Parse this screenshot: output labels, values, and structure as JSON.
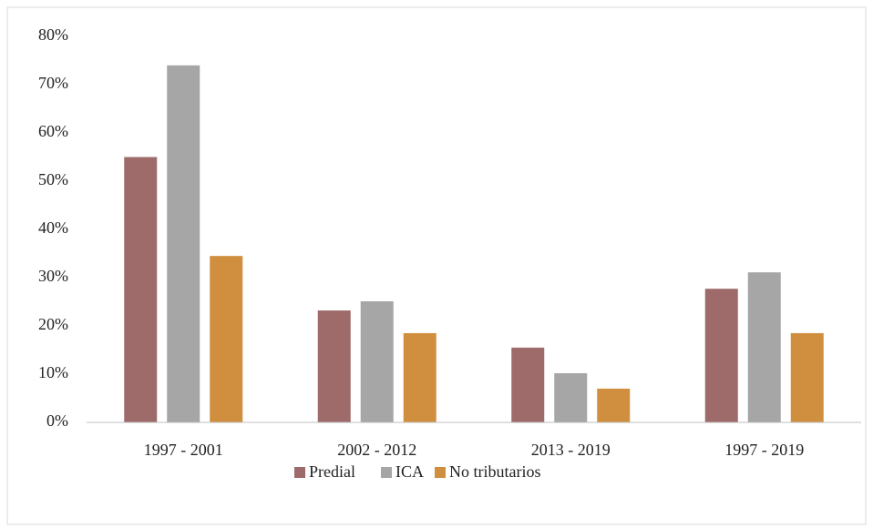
{
  "chart_data": {
    "type": "bar",
    "categories": [
      "1997 - 2001",
      "2002 - 2012",
      "2013 - 2019",
      "1997 - 2019"
    ],
    "series": [
      {
        "name": "Predial",
        "color": "#9e6a6a",
        "values": [
          55,
          23.2,
          15.5,
          27.7
        ]
      },
      {
        "name": "ICA",
        "color": "#a6a6a6",
        "values": [
          74,
          25.1,
          10.2,
          31.1
        ]
      },
      {
        "name": "No tributarios",
        "color": "#d08f3f",
        "values": [
          34.5,
          18.5,
          7,
          18.5
        ]
      }
    ],
    "ylim": [
      0,
      80
    ],
    "yticks": [
      {
        "value": 0,
        "label": "0%"
      },
      {
        "value": 10,
        "label": "10%"
      },
      {
        "value": 20,
        "label": "20%"
      },
      {
        "value": 30,
        "label": "30%"
      },
      {
        "value": 40,
        "label": "40%"
      },
      {
        "value": 50,
        "label": "50%"
      },
      {
        "value": 60,
        "label": "60%"
      },
      {
        "value": 70,
        "label": "70%"
      },
      {
        "value": 80,
        "label": "80%"
      }
    ],
    "grid": false,
    "legend": "bottom"
  }
}
